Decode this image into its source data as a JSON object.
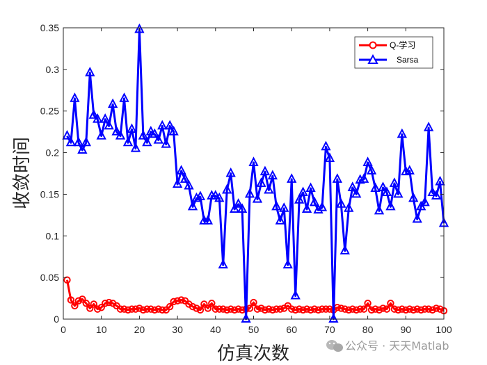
{
  "chart_data": {
    "type": "line",
    "xlabel": "仿真次数",
    "ylabel": "收敛时间",
    "xlim": [
      0,
      100
    ],
    "ylim": [
      0,
      0.35
    ],
    "xticks": [
      "0",
      "10",
      "20",
      "30",
      "40",
      "50",
      "60",
      "70",
      "80",
      "90",
      "100"
    ],
    "yticks": [
      "0",
      "0.05",
      "0.1",
      "0.15",
      "0.2",
      "0.25",
      "0.3",
      "0.35"
    ],
    "legend_position": "top-right",
    "grid": false,
    "x": [
      1,
      2,
      3,
      4,
      5,
      6,
      7,
      8,
      9,
      10,
      11,
      12,
      13,
      14,
      15,
      16,
      17,
      18,
      19,
      20,
      21,
      22,
      23,
      24,
      25,
      26,
      27,
      28,
      29,
      30,
      31,
      32,
      33,
      34,
      35,
      36,
      37,
      38,
      39,
      40,
      41,
      42,
      43,
      44,
      45,
      46,
      47,
      48,
      49,
      50,
      51,
      52,
      53,
      54,
      55,
      56,
      57,
      58,
      59,
      60,
      61,
      62,
      63,
      64,
      65,
      66,
      67,
      68,
      69,
      70,
      71,
      72,
      73,
      74,
      75,
      76,
      77,
      78,
      79,
      80,
      81,
      82,
      83,
      84,
      85,
      86,
      87,
      88,
      89,
      90,
      91,
      92,
      93,
      94,
      95,
      96,
      97,
      98,
      99,
      100
    ],
    "series": [
      {
        "name": "Q-学习",
        "color": "#ff0000",
        "marker": "circle",
        "values": [
          0.047,
          0.023,
          0.016,
          0.022,
          0.024,
          0.019,
          0.013,
          0.018,
          0.012,
          0.014,
          0.019,
          0.02,
          0.019,
          0.016,
          0.012,
          0.012,
          0.011,
          0.012,
          0.012,
          0.013,
          0.011,
          0.012,
          0.012,
          0.011,
          0.012,
          0.011,
          0.011,
          0.015,
          0.021,
          0.022,
          0.023,
          0.022,
          0.018,
          0.015,
          0.013,
          0.011,
          0.018,
          0.013,
          0.019,
          0.012,
          0.012,
          0.012,
          0.011,
          0.012,
          0.011,
          0.012,
          0.011,
          0.012,
          0.013,
          0.02,
          0.012,
          0.013,
          0.011,
          0.012,
          0.011,
          0.012,
          0.012,
          0.013,
          0.016,
          0.012,
          0.011,
          0.012,
          0.011,
          0.012,
          0.011,
          0.012,
          0.011,
          0.012,
          0.012,
          0.012,
          0.011,
          0.014,
          0.013,
          0.012,
          0.011,
          0.012,
          0.011,
          0.012,
          0.012,
          0.019,
          0.011,
          0.012,
          0.011,
          0.013,
          0.012,
          0.019,
          0.012,
          0.011,
          0.012,
          0.011,
          0.012,
          0.011,
          0.012,
          0.011,
          0.012,
          0.012,
          0.011,
          0.013,
          0.012,
          0.01
        ]
      },
      {
        "name": "Sarsa",
        "color": "#0000ff",
        "marker": "triangle",
        "values": [
          0.22,
          0.212,
          0.265,
          0.212,
          0.203,
          0.212,
          0.296,
          0.245,
          0.24,
          0.22,
          0.24,
          0.232,
          0.258,
          0.225,
          0.22,
          0.265,
          0.212,
          0.228,
          0.205,
          0.348,
          0.22,
          0.212,
          0.225,
          0.222,
          0.215,
          0.232,
          0.21,
          0.232,
          0.225,
          0.162,
          0.178,
          0.168,
          0.16,
          0.135,
          0.145,
          0.147,
          0.118,
          0.118,
          0.148,
          0.148,
          0.145,
          0.065,
          0.155,
          0.175,
          0.132,
          0.138,
          0.132,
          0.0,
          0.15,
          0.188,
          0.144,
          0.163,
          0.177,
          0.155,
          0.172,
          0.135,
          0.118,
          0.133,
          0.065,
          0.168,
          0.028,
          0.143,
          0.152,
          0.132,
          0.157,
          0.14,
          0.131,
          0.134,
          0.207,
          0.193,
          0.0,
          0.168,
          0.138,
          0.082,
          0.133,
          0.158,
          0.15,
          0.167,
          0.168,
          0.188,
          0.178,
          0.157,
          0.13,
          0.158,
          0.152,
          0.135,
          0.163,
          0.15,
          0.222,
          0.177,
          0.178,
          0.145,
          0.12,
          0.135,
          0.14,
          0.23,
          0.152,
          0.148,
          0.165,
          0.115
        ]
      }
    ]
  },
  "watermark": "公众号 · 天天Matlab",
  "watermark_icon": "wechat-icon"
}
